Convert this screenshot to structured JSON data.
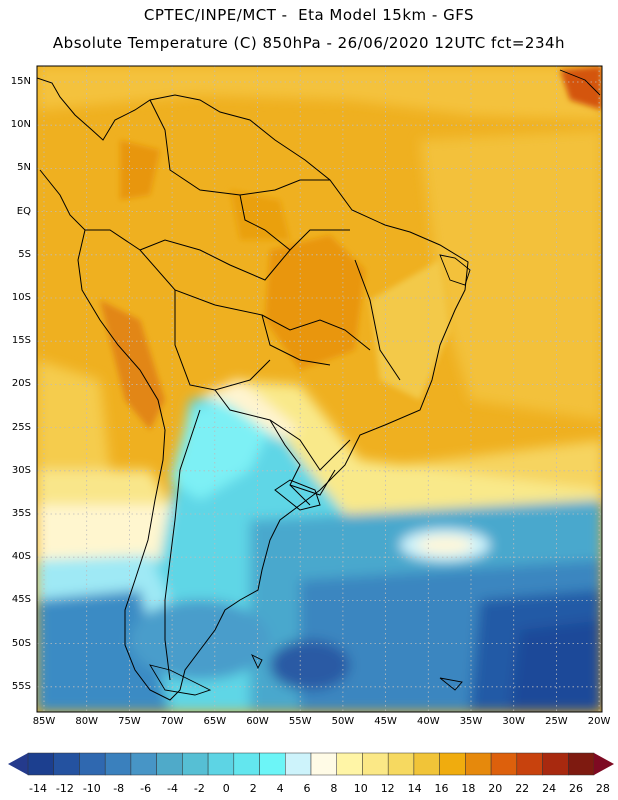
{
  "header": {
    "line1": "CPTEC/INPE/MCT -  Eta Model 15km - GFS",
    "line2": "Absolute Temperature (C) 850hPa - 26/06/2020 12UTC fct=234h"
  },
  "map": {
    "lat_ticks": [
      "15N",
      "10N",
      "5N",
      "EQ",
      "5S",
      "10S",
      "15S",
      "20S",
      "25S",
      "30S",
      "35S",
      "40S",
      "45S",
      "50S",
      "55S"
    ],
    "lon_ticks": [
      "85W",
      "80W",
      "75W",
      "70W",
      "65W",
      "60W",
      "55W",
      "50W",
      "45W",
      "40W",
      "35W",
      "30W",
      "25W",
      "20W"
    ],
    "grid": "dotted"
  },
  "colorbar": {
    "labels": [
      "-14",
      "-12",
      "-10",
      "-8",
      "-6",
      "-4",
      "-2",
      "0",
      "2",
      "4",
      "6",
      "8",
      "10",
      "12",
      "14",
      "16",
      "18",
      "20",
      "22",
      "24",
      "26",
      "28"
    ],
    "colors": [
      "#1c3f8f",
      "#2452a0",
      "#2f68b0",
      "#3a80bd",
      "#4795c6",
      "#4faac9",
      "#56bfd4",
      "#5dd4e4",
      "#63e6ee",
      "#6cf5f7",
      "#cdf3fb",
      "#fffbe6",
      "#fff5a6",
      "#fbe886",
      "#f6d960",
      "#f1c438",
      "#f0ac0e",
      "#e6890c",
      "#dd600c",
      "#c8420d",
      "#a8290f",
      "#7e1a10"
    ],
    "under_color": "#243a8c",
    "over_color": "#7e0a22"
  }
}
